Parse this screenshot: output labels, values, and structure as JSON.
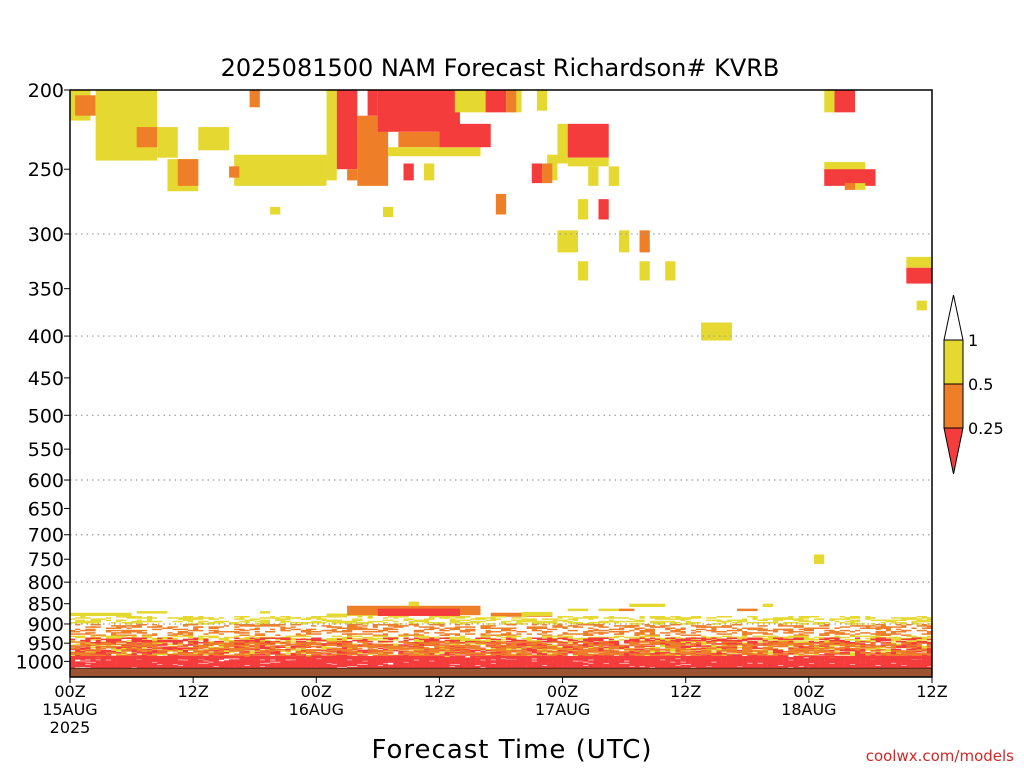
{
  "chart_data": {
    "type": "heatmap",
    "title": "2025081500 NAM Forecast Richardson# KVRB",
    "xlabel": "Forecast Time (UTC)",
    "ylabel": "",
    "credit": "coolwx.com/models",
    "y_scale": "log",
    "x_range_hours": [
      0,
      84
    ],
    "y_range_hpa": [
      200,
      1045
    ],
    "x_ticks": [
      {
        "hour": 0,
        "line1": "00Z",
        "line2": "15AUG",
        "line3": "2025"
      },
      {
        "hour": 12,
        "line1": "12Z",
        "line2": "",
        "line3": ""
      },
      {
        "hour": 24,
        "line1": "00Z",
        "line2": "16AUG",
        "line3": ""
      },
      {
        "hour": 36,
        "line1": "12Z",
        "line2": "",
        "line3": ""
      },
      {
        "hour": 48,
        "line1": "00Z",
        "line2": "17AUG",
        "line3": ""
      },
      {
        "hour": 60,
        "line1": "12Z",
        "line2": "",
        "line3": ""
      },
      {
        "hour": 72,
        "line1": "00Z",
        "line2": "18AUG",
        "line3": ""
      },
      {
        "hour": 84,
        "line1": "12Z",
        "line2": "",
        "line3": ""
      }
    ],
    "y_ticks": [
      {
        "value": 200,
        "label": "200",
        "grid": false
      },
      {
        "value": 250,
        "label": "250",
        "grid": false
      },
      {
        "value": 300,
        "label": "300",
        "grid": true
      },
      {
        "value": 350,
        "label": "350",
        "grid": false
      },
      {
        "value": 400,
        "label": "400",
        "grid": true
      },
      {
        "value": 450,
        "label": "450",
        "grid": false
      },
      {
        "value": 500,
        "label": "500",
        "grid": true
      },
      {
        "value": 550,
        "label": "550",
        "grid": false
      },
      {
        "value": 600,
        "label": "600",
        "grid": true
      },
      {
        "value": 650,
        "label": "650",
        "grid": false
      },
      {
        "value": 700,
        "label": "700",
        "grid": true
      },
      {
        "value": 750,
        "label": "750",
        "grid": false
      },
      {
        "value": 800,
        "label": "800",
        "grid": true
      },
      {
        "value": 850,
        "label": "850",
        "grid": false
      },
      {
        "value": 900,
        "label": "900",
        "grid": true
      },
      {
        "value": 950,
        "label": "950",
        "grid": false
      },
      {
        "value": 1000,
        "label": "1000",
        "grid": false
      }
    ],
    "legend": {
      "placement": "right",
      "labels": [
        "1",
        "0.5",
        "0.25"
      ],
      "colors": [
        "#ffffff",
        "#e5d830",
        "#ee7f28",
        "#f53c3c"
      ]
    },
    "colors": {
      "yellow": "#e5d830",
      "orange": "#ee7f28",
      "red": "#f53c3c",
      "ground": "#9a5530"
    },
    "ground_top_hpa": 1020,
    "cells": [
      {
        "h0": 0,
        "h1": 2,
        "p0": 200,
        "p1": 218,
        "c": "yellow"
      },
      {
        "h0": 0.5,
        "h1": 2.5,
        "p0": 203,
        "p1": 215,
        "c": "orange"
      },
      {
        "h0": 2.5,
        "h1": 8.5,
        "p0": 200,
        "p1": 244,
        "c": "yellow"
      },
      {
        "h0": 6.5,
        "h1": 8.5,
        "p0": 222,
        "p1": 235,
        "c": "orange"
      },
      {
        "h0": 8.5,
        "h1": 10.5,
        "p0": 222,
        "p1": 242,
        "c": "yellow"
      },
      {
        "h0": 9.5,
        "h1": 12.5,
        "p0": 243,
        "p1": 266,
        "c": "yellow"
      },
      {
        "h0": 10.5,
        "h1": 12.5,
        "p0": 243,
        "p1": 262,
        "c": "orange"
      },
      {
        "h0": 12.5,
        "h1": 15.5,
        "p0": 222,
        "p1": 237,
        "c": "yellow"
      },
      {
        "h0": 17.5,
        "h1": 18.5,
        "p0": 200,
        "p1": 210,
        "c": "orange"
      },
      {
        "h0": 16,
        "h1": 25,
        "p0": 240,
        "p1": 262,
        "c": "yellow"
      },
      {
        "h0": 15.5,
        "h1": 16.5,
        "p0": 248,
        "p1": 256,
        "c": "orange"
      },
      {
        "h0": 19.5,
        "h1": 20.5,
        "p0": 278,
        "p1": 284,
        "c": "yellow"
      },
      {
        "h0": 25,
        "h1": 26,
        "p0": 200,
        "p1": 258,
        "c": "yellow"
      },
      {
        "h0": 26,
        "h1": 28,
        "p0": 200,
        "p1": 250,
        "c": "red"
      },
      {
        "h0": 27,
        "h1": 28,
        "p0": 250,
        "p1": 258,
        "c": "orange"
      },
      {
        "h0": 28,
        "h1": 31,
        "p0": 215,
        "p1": 262,
        "c": "orange"
      },
      {
        "h0": 29,
        "h1": 30,
        "p0": 200,
        "p1": 215,
        "c": "red"
      },
      {
        "h0": 30,
        "h1": 38,
        "p0": 200,
        "p1": 225,
        "c": "red"
      },
      {
        "h0": 32,
        "h1": 36,
        "p0": 225,
        "p1": 235,
        "c": "orange"
      },
      {
        "h0": 31,
        "h1": 40,
        "p0": 235,
        "p1": 241,
        "c": "yellow"
      },
      {
        "h0": 36,
        "h1": 41,
        "p0": 220,
        "p1": 235,
        "c": "red"
      },
      {
        "h0": 37.5,
        "h1": 40.5,
        "p0": 200,
        "p1": 213,
        "c": "yellow"
      },
      {
        "h0": 40.5,
        "h1": 42.5,
        "p0": 200,
        "p1": 213,
        "c": "red"
      },
      {
        "h0": 42.5,
        "h1": 43.5,
        "p0": 200,
        "p1": 213,
        "c": "orange"
      },
      {
        "h0": 43.5,
        "h1": 44,
        "p0": 200,
        "p1": 213,
        "c": "yellow"
      },
      {
        "h0": 32.5,
        "h1": 33.5,
        "p0": 246,
        "p1": 258,
        "c": "red"
      },
      {
        "h0": 34.5,
        "h1": 35.5,
        "p0": 246,
        "p1": 258,
        "c": "yellow"
      },
      {
        "h0": 30.5,
        "h1": 31.5,
        "p0": 278,
        "p1": 286,
        "c": "yellow"
      },
      {
        "h0": 41.5,
        "h1": 42.5,
        "p0": 268,
        "p1": 284,
        "c": "orange"
      },
      {
        "h0": 45.5,
        "h1": 46.5,
        "p0": 200,
        "p1": 212,
        "c": "yellow"
      },
      {
        "h0": 46.5,
        "h1": 47.5,
        "p0": 240,
        "p1": 258,
        "c": "yellow"
      },
      {
        "h0": 47.5,
        "h1": 48.5,
        "p0": 220,
        "p1": 246,
        "c": "yellow"
      },
      {
        "h0": 45,
        "h1": 46,
        "p0": 246,
        "p1": 260,
        "c": "red"
      },
      {
        "h0": 46,
        "h1": 47,
        "p0": 246,
        "p1": 260,
        "c": "orange"
      },
      {
        "h0": 48.5,
        "h1": 52.5,
        "p0": 220,
        "p1": 242,
        "c": "red"
      },
      {
        "h0": 48.5,
        "h1": 52.5,
        "p0": 242,
        "p1": 248,
        "c": "yellow"
      },
      {
        "h0": 50.5,
        "h1": 51.5,
        "p0": 248,
        "p1": 262,
        "c": "yellow"
      },
      {
        "h0": 52.5,
        "h1": 53.5,
        "p0": 248,
        "p1": 262,
        "c": "yellow"
      },
      {
        "h0": 49.5,
        "h1": 50.5,
        "p0": 272,
        "p1": 288,
        "c": "yellow"
      },
      {
        "h0": 51.5,
        "h1": 52.5,
        "p0": 272,
        "p1": 288,
        "c": "red"
      },
      {
        "h0": 47.5,
        "h1": 49.5,
        "p0": 297,
        "p1": 316,
        "c": "yellow"
      },
      {
        "h0": 53.5,
        "h1": 54.5,
        "p0": 297,
        "p1": 316,
        "c": "yellow"
      },
      {
        "h0": 55.5,
        "h1": 56.5,
        "p0": 297,
        "p1": 316,
        "c": "orange"
      },
      {
        "h0": 49.5,
        "h1": 50.5,
        "p0": 324,
        "p1": 342,
        "c": "yellow"
      },
      {
        "h0": 55.5,
        "h1": 56.5,
        "p0": 324,
        "p1": 342,
        "c": "yellow"
      },
      {
        "h0": 58,
        "h1": 59,
        "p0": 324,
        "p1": 342,
        "c": "yellow"
      },
      {
        "h0": 61.5,
        "h1": 64.5,
        "p0": 385,
        "p1": 405,
        "c": "yellow"
      },
      {
        "h0": 73.5,
        "h1": 74.5,
        "p0": 200,
        "p1": 213,
        "c": "yellow"
      },
      {
        "h0": 74.5,
        "h1": 76.5,
        "p0": 200,
        "p1": 213,
        "c": "red"
      },
      {
        "h0": 73.5,
        "h1": 77.5,
        "p0": 245,
        "p1": 252,
        "c": "yellow"
      },
      {
        "h0": 73.5,
        "h1": 78.5,
        "p0": 250,
        "p1": 262,
        "c": "red"
      },
      {
        "h0": 75.5,
        "h1": 76.5,
        "p0": 260,
        "p1": 265,
        "c": "orange"
      },
      {
        "h0": 76.5,
        "h1": 77.5,
        "p0": 260,
        "p1": 265,
        "c": "yellow"
      },
      {
        "h0": 81.5,
        "h1": 84,
        "p0": 320,
        "p1": 330,
        "c": "yellow"
      },
      {
        "h0": 81.5,
        "h1": 84,
        "p0": 330,
        "p1": 345,
        "c": "red"
      },
      {
        "h0": 82.5,
        "h1": 83.5,
        "p0": 362,
        "p1": 372,
        "c": "yellow"
      },
      {
        "h0": 72.5,
        "h1": 73.5,
        "p0": 740,
        "p1": 760,
        "c": "yellow"
      },
      {
        "h0": 0,
        "h1": 6,
        "p0": 872,
        "p1": 880,
        "c": "yellow"
      },
      {
        "h0": 6.5,
        "h1": 9.5,
        "p0": 868,
        "p1": 874,
        "c": "yellow"
      },
      {
        "h0": 18.5,
        "h1": 19.5,
        "p0": 868,
        "p1": 874,
        "c": "yellow"
      },
      {
        "h0": 25,
        "h1": 31,
        "p0": 874,
        "p1": 880,
        "c": "yellow"
      },
      {
        "h0": 27,
        "h1": 40,
        "p0": 855,
        "p1": 878,
        "c": "orange"
      },
      {
        "h0": 30,
        "h1": 38,
        "p0": 862,
        "p1": 880,
        "c": "red"
      },
      {
        "h0": 33,
        "h1": 34,
        "p0": 845,
        "p1": 856,
        "c": "yellow"
      },
      {
        "h0": 41,
        "h1": 47,
        "p0": 872,
        "p1": 882,
        "c": "orange"
      },
      {
        "h0": 44,
        "h1": 47,
        "p0": 870,
        "p1": 880,
        "c": "yellow"
      },
      {
        "h0": 48.5,
        "h1": 50.5,
        "p0": 862,
        "p1": 868,
        "c": "yellow"
      },
      {
        "h0": 51.5,
        "h1": 53.5,
        "p0": 862,
        "p1": 868,
        "c": "yellow"
      },
      {
        "h0": 53.5,
        "h1": 55,
        "p0": 862,
        "p1": 868,
        "c": "orange"
      },
      {
        "h0": 54.5,
        "h1": 58,
        "p0": 850,
        "p1": 858,
        "c": "yellow"
      },
      {
        "h0": 65,
        "h1": 67,
        "p0": 862,
        "p1": 868,
        "c": "orange"
      },
      {
        "h0": 67.5,
        "h1": 68.5,
        "p0": 850,
        "p1": 858,
        "c": "yellow"
      },
      {
        "h0": 0,
        "h1": 84,
        "p0": 880,
        "p1": 900,
        "c": "yellow",
        "sparse": 0.35
      },
      {
        "h0": 0,
        "h1": 84,
        "p0": 900,
        "p1": 930,
        "c": "orange",
        "sparse": 0.3
      },
      {
        "h0": 0,
        "h1": 84,
        "p0": 930,
        "p1": 985,
        "c": "yellow",
        "sparse": 0.4
      },
      {
        "h0": 0,
        "h1": 84,
        "p0": 935,
        "p1": 990,
        "c": "red",
        "sparse": 0.35
      },
      {
        "h0": 0,
        "h1": 84,
        "p0": 945,
        "p1": 990,
        "c": "orange",
        "sparse": 0.3
      },
      {
        "h0": 0,
        "h1": 84,
        "p0": 985,
        "p1": 1020,
        "c": "red",
        "sparse": 0.85
      }
    ]
  }
}
